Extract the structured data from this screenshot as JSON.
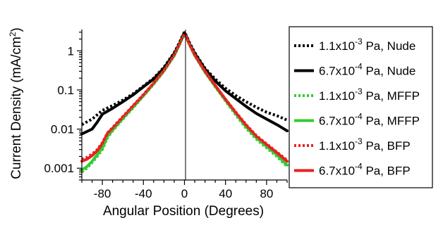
{
  "chart_data": {
    "type": "line",
    "xlabel": "Angular Position (Degrees)",
    "ylabel_main": "Current Density (mA/cm",
    "ylabel_sup": "2",
    "ylabel_end": ")",
    "xlim": [
      -100,
      100
    ],
    "ylim": [
      0.0005,
      3.5
    ],
    "yscale": "log",
    "grid": false,
    "legend_position": "right",
    "x_ticks": [
      {
        "value": -80,
        "label": "-80"
      },
      {
        "value": -40,
        "label": "-40"
      },
      {
        "value": 0,
        "label": "0"
      },
      {
        "value": 40,
        "label": "40"
      },
      {
        "value": 80,
        "label": "80"
      }
    ],
    "y_ticks": [
      {
        "value": 1,
        "label": "1"
      },
      {
        "value": 0.1,
        "label": "0.1"
      },
      {
        "value": 0.01,
        "label": "0.01"
      },
      {
        "value": 0.001,
        "label": "0.001"
      }
    ],
    "series": [
      {
        "name_mantissa": "1.1x10",
        "name_exp": "-3",
        "name_rest": " Pa, Nude",
        "color": "#000000",
        "dash": "dotted",
        "x": [
          -100,
          -90,
          -80,
          -70,
          -60,
          -50,
          -40,
          -30,
          -20,
          -10,
          -5,
          -2,
          0,
          2,
          5,
          10,
          20,
          30,
          40,
          50,
          60,
          70,
          80,
          90,
          100
        ],
        "y": [
          0.013,
          0.018,
          0.03,
          0.04,
          0.055,
          0.08,
          0.125,
          0.2,
          0.38,
          0.9,
          1.6,
          2.4,
          3.0,
          2.4,
          1.6,
          0.9,
          0.36,
          0.19,
          0.11,
          0.072,
          0.05,
          0.036,
          0.027,
          0.022,
          0.017
        ]
      },
      {
        "name_mantissa": "6.7x10",
        "name_exp": "-4",
        "name_rest": " Pa, Nude",
        "color": "#000000",
        "dash": "solid",
        "x": [
          -100,
          -90,
          -85,
          -80,
          -70,
          -60,
          -50,
          -40,
          -30,
          -20,
          -10,
          -5,
          -2,
          0,
          2,
          5,
          10,
          20,
          30,
          40,
          50,
          60,
          70,
          80,
          90,
          100
        ],
        "y": [
          0.0075,
          0.01,
          0.015,
          0.024,
          0.034,
          0.05,
          0.075,
          0.12,
          0.19,
          0.36,
          0.85,
          1.5,
          2.3,
          2.9,
          2.3,
          1.5,
          0.85,
          0.34,
          0.17,
          0.095,
          0.06,
          0.038,
          0.025,
          0.018,
          0.013,
          0.009
        ]
      },
      {
        "name_mantissa": "1.1x10",
        "name_exp": "-3",
        "name_rest": " Pa, MFFP",
        "color": "#33cc33",
        "dash": "dotted",
        "x": [
          -100,
          -95,
          -90,
          -85,
          -80,
          -75,
          -70,
          -60,
          -50,
          -40,
          -30,
          -20,
          -10,
          -5,
          -2,
          0,
          2,
          5,
          10,
          20,
          30,
          40,
          50,
          60,
          70,
          80,
          90,
          100
        ],
        "y": [
          0.0008,
          0.001,
          0.0014,
          0.002,
          0.003,
          0.006,
          0.009,
          0.018,
          0.035,
          0.07,
          0.14,
          0.3,
          0.75,
          1.4,
          2.1,
          2.6,
          2.1,
          1.4,
          0.75,
          0.28,
          0.12,
          0.052,
          0.023,
          0.0105,
          0.0055,
          0.0033,
          0.002,
          0.0011
        ]
      },
      {
        "name_mantissa": "6.7x10",
        "name_exp": "-4",
        "name_rest": " Pa, MFFP",
        "color": "#33cc33",
        "dash": "solid",
        "x": [
          -100,
          -95,
          -90,
          -85,
          -80,
          -75,
          -70,
          -60,
          -50,
          -40,
          -30,
          -20,
          -10,
          -5,
          -2,
          0,
          2,
          5,
          10,
          20,
          30,
          40,
          50,
          60,
          70,
          80,
          90,
          100
        ],
        "y": [
          0.0009,
          0.0011,
          0.0015,
          0.0022,
          0.0033,
          0.0065,
          0.0095,
          0.019,
          0.037,
          0.072,
          0.145,
          0.31,
          0.77,
          1.45,
          2.15,
          2.65,
          2.15,
          1.45,
          0.77,
          0.29,
          0.125,
          0.055,
          0.025,
          0.0115,
          0.006,
          0.0036,
          0.0022,
          0.0012
        ]
      },
      {
        "name_mantissa": "1.1x10",
        "name_exp": "-3",
        "name_rest": " Pa, BFP",
        "color": "#e82020",
        "dash": "dotted",
        "x": [
          -100,
          -95,
          -90,
          -85,
          -80,
          -75,
          -70,
          -60,
          -50,
          -40,
          -30,
          -20,
          -10,
          -5,
          -2,
          0,
          2,
          5,
          10,
          20,
          30,
          40,
          50,
          60,
          70,
          80,
          90,
          100
        ],
        "y": [
          0.0017,
          0.0019,
          0.0023,
          0.003,
          0.0045,
          0.008,
          0.011,
          0.021,
          0.04,
          0.076,
          0.15,
          0.32,
          0.78,
          1.45,
          2.2,
          2.7,
          2.2,
          1.45,
          0.78,
          0.3,
          0.13,
          0.058,
          0.027,
          0.013,
          0.0068,
          0.0042,
          0.0026,
          0.0016
        ]
      },
      {
        "name_mantissa": "6.7x10",
        "name_exp": "-4",
        "name_rest": " Pa, BFP",
        "color": "#e82020",
        "dash": "solid",
        "x": [
          -100,
          -95,
          -90,
          -85,
          -80,
          -75,
          -70,
          -60,
          -50,
          -40,
          -30,
          -20,
          -10,
          -5,
          -2,
          0,
          2,
          5,
          10,
          20,
          30,
          40,
          50,
          60,
          70,
          80,
          90,
          100
        ],
        "y": [
          0.0015,
          0.0017,
          0.0021,
          0.0028,
          0.0042,
          0.0078,
          0.0105,
          0.02,
          0.039,
          0.074,
          0.148,
          0.315,
          0.78,
          1.45,
          2.2,
          2.7,
          2.2,
          1.45,
          0.78,
          0.3,
          0.13,
          0.057,
          0.026,
          0.0125,
          0.0065,
          0.004,
          0.0025,
          0.0015
        ]
      }
    ]
  }
}
